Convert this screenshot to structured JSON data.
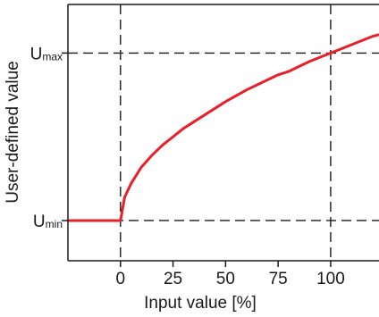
{
  "chart_data": {
    "type": "line",
    "xlabel": "Input value [%]",
    "ylabel": "User-defined value",
    "x_ticks": [
      "0",
      "25",
      "50",
      "75",
      "100"
    ],
    "x_tick_values": [
      0,
      25,
      50,
      75,
      100
    ],
    "xlim": [
      -25,
      123
    ],
    "y_ticks": [
      {
        "main": "U",
        "sub": "min",
        "value": 0
      },
      {
        "main": "U",
        "sub": "max",
        "value": 1
      }
    ],
    "ylim": [
      -0.24,
      1.29
    ],
    "reference_lines": {
      "x": [
        0,
        100
      ],
      "y": [
        0,
        1
      ]
    },
    "grid": false,
    "series": [
      {
        "color": "#e8202a",
        "x": [
          -25,
          0,
          2,
          5,
          10,
          15,
          20,
          25,
          30,
          40,
          50,
          60,
          70,
          75,
          80,
          90,
          100,
          110,
          120,
          123
        ],
        "y": [
          0,
          0,
          0.14,
          0.22,
          0.32,
          0.39,
          0.45,
          0.5,
          0.55,
          0.63,
          0.71,
          0.78,
          0.84,
          0.87,
          0.89,
          0.95,
          1.0,
          1.05,
          1.1,
          1.11
        ]
      }
    ]
  }
}
